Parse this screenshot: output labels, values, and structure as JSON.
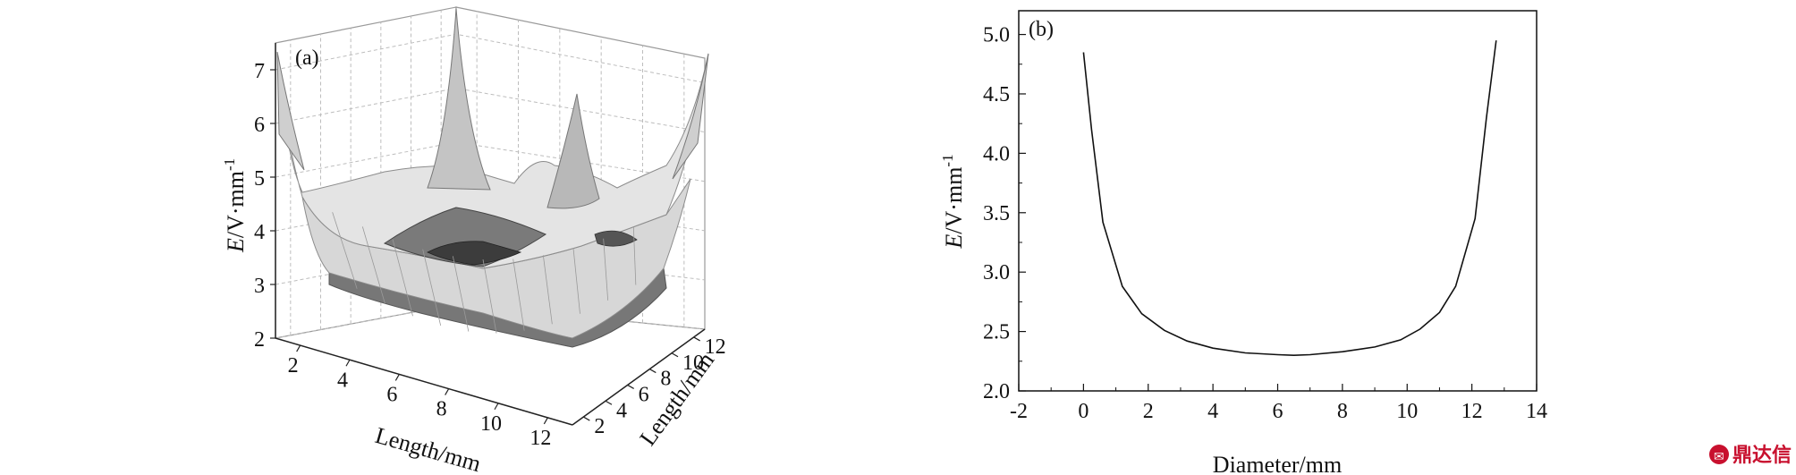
{
  "watermark": {
    "text": "鼎达信",
    "color": "#c8102e"
  },
  "chart_data": [
    {
      "type": "surface",
      "panel_label": "(a)",
      "xlabel": "Length/mm",
      "ylabel": "Length/mm",
      "zlabel_italic": "E",
      "zlabel_rest": "/V·mm",
      "zlabel_sup": "-1",
      "x_ticks": [
        "2",
        "4",
        "6",
        "8",
        "10",
        "12"
      ],
      "y_ticks": [
        "2",
        "4",
        "6",
        "8",
        "10",
        "12"
      ],
      "z_ticks": [
        "2",
        "3",
        "4",
        "5",
        "6",
        "7"
      ],
      "xlim": [
        1,
        13
      ],
      "ylim": [
        1,
        13
      ],
      "zlim": [
        2,
        7.5
      ],
      "grid": true,
      "colors": {
        "surface_light": "#dcdcdc",
        "surface_dark": "#707070",
        "surface_mid": "#a8a8a8"
      }
    },
    {
      "type": "line",
      "panel_label": "(b)",
      "xlabel": "Diameter/mm",
      "ylabel_italic": "E",
      "ylabel_rest": "/V·mm",
      "ylabel_sup": "-1",
      "xlim": [
        -2,
        14
      ],
      "ylim": [
        2.0,
        5.2
      ],
      "x_ticks": [
        "-2",
        "0",
        "2",
        "4",
        "6",
        "8",
        "10",
        "12",
        "14"
      ],
      "y_ticks": [
        "2.0",
        "2.5",
        "3.0",
        "3.5",
        "4.0",
        "4.5",
        "5.0"
      ],
      "grid": false,
      "series": [
        {
          "x": [
            0.0,
            0.25,
            0.6,
            1.2,
            1.8,
            2.5,
            3.2,
            4.0,
            5.0,
            6.0,
            6.5,
            7.0,
            8.0,
            9.0,
            9.8,
            10.4,
            11.0,
            11.5,
            12.1,
            12.45,
            12.75
          ],
          "y": [
            4.85,
            4.2,
            3.42,
            2.88,
            2.65,
            2.51,
            2.42,
            2.36,
            2.32,
            2.305,
            2.3,
            2.305,
            2.33,
            2.37,
            2.43,
            2.52,
            2.66,
            2.88,
            3.45,
            4.3,
            4.95
          ]
        }
      ]
    }
  ]
}
